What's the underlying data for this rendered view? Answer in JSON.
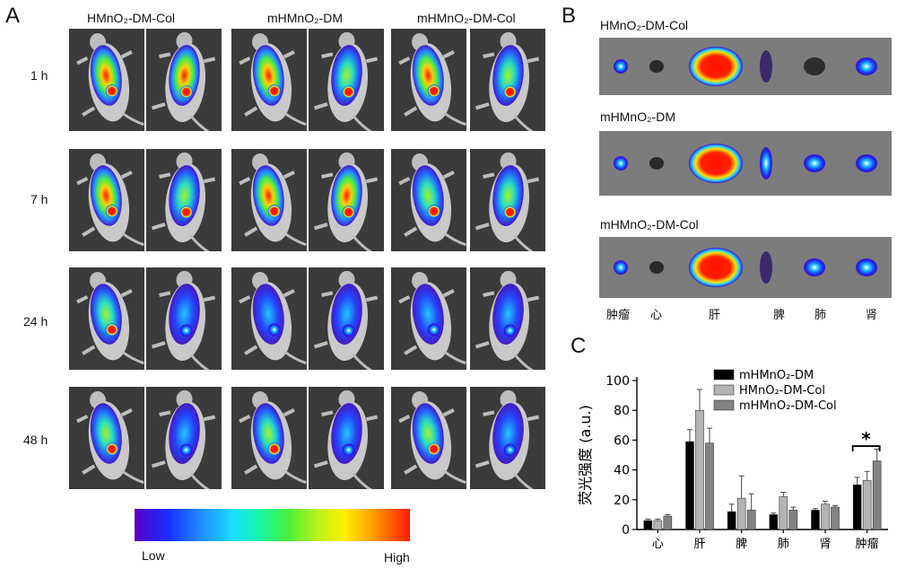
{
  "panel_a": {
    "letter": "A",
    "groups": [
      "HMnO₂-DM-Col",
      "mHMnO₂-DM",
      "mHMnO₂-DM-Col"
    ],
    "timepoints": [
      "1 h",
      "7 h",
      "24 h",
      "48 h"
    ],
    "colorbar": {
      "low_label": "Low",
      "high_label": "High"
    }
  },
  "panel_b": {
    "letter": "B",
    "groups": [
      "HMnO₂-DM-Col",
      "mHMnO₂-DM",
      "mHMnO₂-DM-Col"
    ],
    "organs": [
      "肿瘤",
      "心",
      "肝",
      "脾",
      "肺",
      "肾"
    ]
  },
  "panel_c": {
    "letter": "C",
    "significance_marker": "*"
  },
  "chart_data": {
    "type": "bar",
    "categories": [
      "心",
      "肝",
      "脾",
      "肺",
      "肾",
      "肿瘤"
    ],
    "ylabel": "荧光强度 (a.u.)",
    "xlabel": "",
    "ylim": [
      0,
      100
    ],
    "yticks": [
      0,
      20,
      40,
      60,
      80,
      100
    ],
    "legend_position": "top-right",
    "series": [
      {
        "name": "mHMnO₂-DM",
        "color": "#000000",
        "values": [
          6,
          59,
          12,
          10,
          13,
          30
        ],
        "errors": [
          1,
          8,
          5,
          1,
          1,
          5
        ]
      },
      {
        "name": "HMnO₂-DM-Col",
        "color": "#b4b4b4",
        "values": [
          6,
          80,
          21,
          22,
          17,
          33
        ],
        "errors": [
          1,
          14,
          15,
          3,
          2,
          6
        ]
      },
      {
        "name": "mHMnO₂-DM-Col",
        "color": "#828282",
        "values": [
          9,
          58,
          13,
          13,
          15,
          46
        ],
        "errors": [
          1,
          10,
          11,
          2,
          1,
          8
        ]
      }
    ]
  }
}
